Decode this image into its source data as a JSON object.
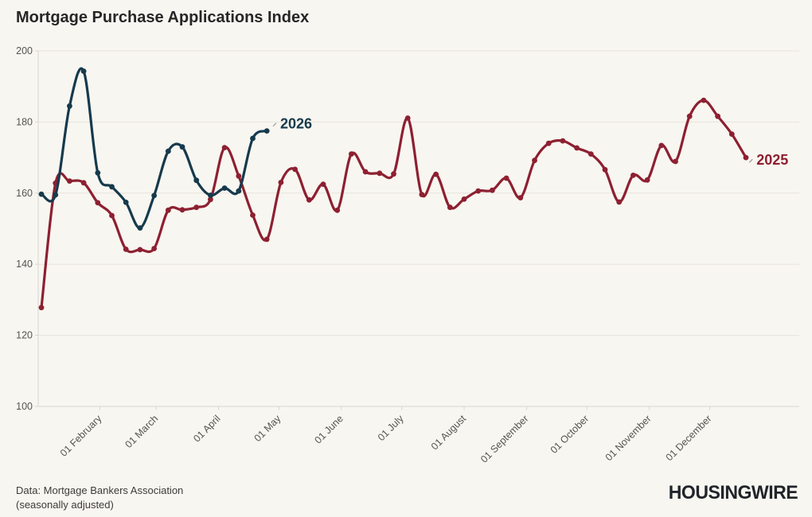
{
  "title": "Mortgage Purchase Applications Index",
  "footer": {
    "source_line1": "Data: Mortgage Bankers Association",
    "source_line2": "(seasonally adjusted)",
    "logo_text": "HOUSINGWIRE"
  },
  "colors": {
    "background": "#f8f6f1",
    "grid": "#e7e4dd",
    "axis": "#d9d6cf",
    "tick_text": "#565450",
    "title_text": "#262626",
    "series_2025": "#8d2031",
    "series_2026": "#163a4d",
    "leader_tick": "#9a978f"
  },
  "chart_data": {
    "type": "line",
    "title": "Mortgage Purchase Applications Index",
    "xlabel": "",
    "ylabel": "",
    "ylim": [
      100,
      200
    ],
    "y_ticks": [
      100,
      120,
      140,
      160,
      180,
      200
    ],
    "grid": "horizontal",
    "legend_position": "inline-end-labels",
    "x_ticks": [
      {
        "label": "01 February",
        "week": 4.143
      },
      {
        "label": "01 March",
        "week": 8.143
      },
      {
        "label": "01 April",
        "week": 12.571
      },
      {
        "label": "01 May",
        "week": 16.857
      },
      {
        "label": "01 June",
        "week": 21.286
      },
      {
        "label": "01 July",
        "week": 25.571
      },
      {
        "label": "01 August",
        "week": 30.0
      },
      {
        "label": "01 September",
        "week": 34.429
      },
      {
        "label": "01 October",
        "week": 38.714
      },
      {
        "label": "01 November",
        "week": 43.143
      },
      {
        "label": "01 December",
        "week": 47.429
      }
    ],
    "series": [
      {
        "name": "2025",
        "color": "#8d2031",
        "start_week": 0,
        "values": [
          127.8,
          162.8,
          163.4,
          162.9,
          157.3,
          153.7,
          144.2,
          144.1,
          144.4,
          155.2,
          155.3,
          156.0,
          158.2,
          172.8,
          164.8,
          153.8,
          147.0,
          163.0,
          166.7,
          158.1,
          162.5,
          155.2,
          171.0,
          166.0,
          165.6,
          165.4,
          181.1,
          159.6,
          165.3,
          156.0,
          158.3,
          160.6,
          160.8,
          164.2,
          158.7,
          169.2,
          174.0,
          174.7,
          172.7,
          171.0,
          166.6,
          157.5,
          165.0,
          163.7,
          173.4,
          168.9,
          181.6,
          186.1,
          181.6,
          176.6,
          170.0
        ]
      },
      {
        "name": "2026",
        "color": "#163a4d",
        "start_week": 0,
        "values": [
          159.7,
          159.5,
          184.5,
          194.3,
          165.7,
          161.8,
          157.4,
          150.2,
          159.3,
          171.8,
          173.0,
          163.6,
          159.4,
          161.4,
          160.6,
          175.4,
          177.5
        ]
      }
    ],
    "annotations": [
      {
        "text": "2026",
        "week": 16.95,
        "value": 179.5,
        "color": "#163a4d"
      },
      {
        "text": "2025",
        "week": 50.75,
        "value": 169.3,
        "color": "#8d2031"
      }
    ]
  }
}
